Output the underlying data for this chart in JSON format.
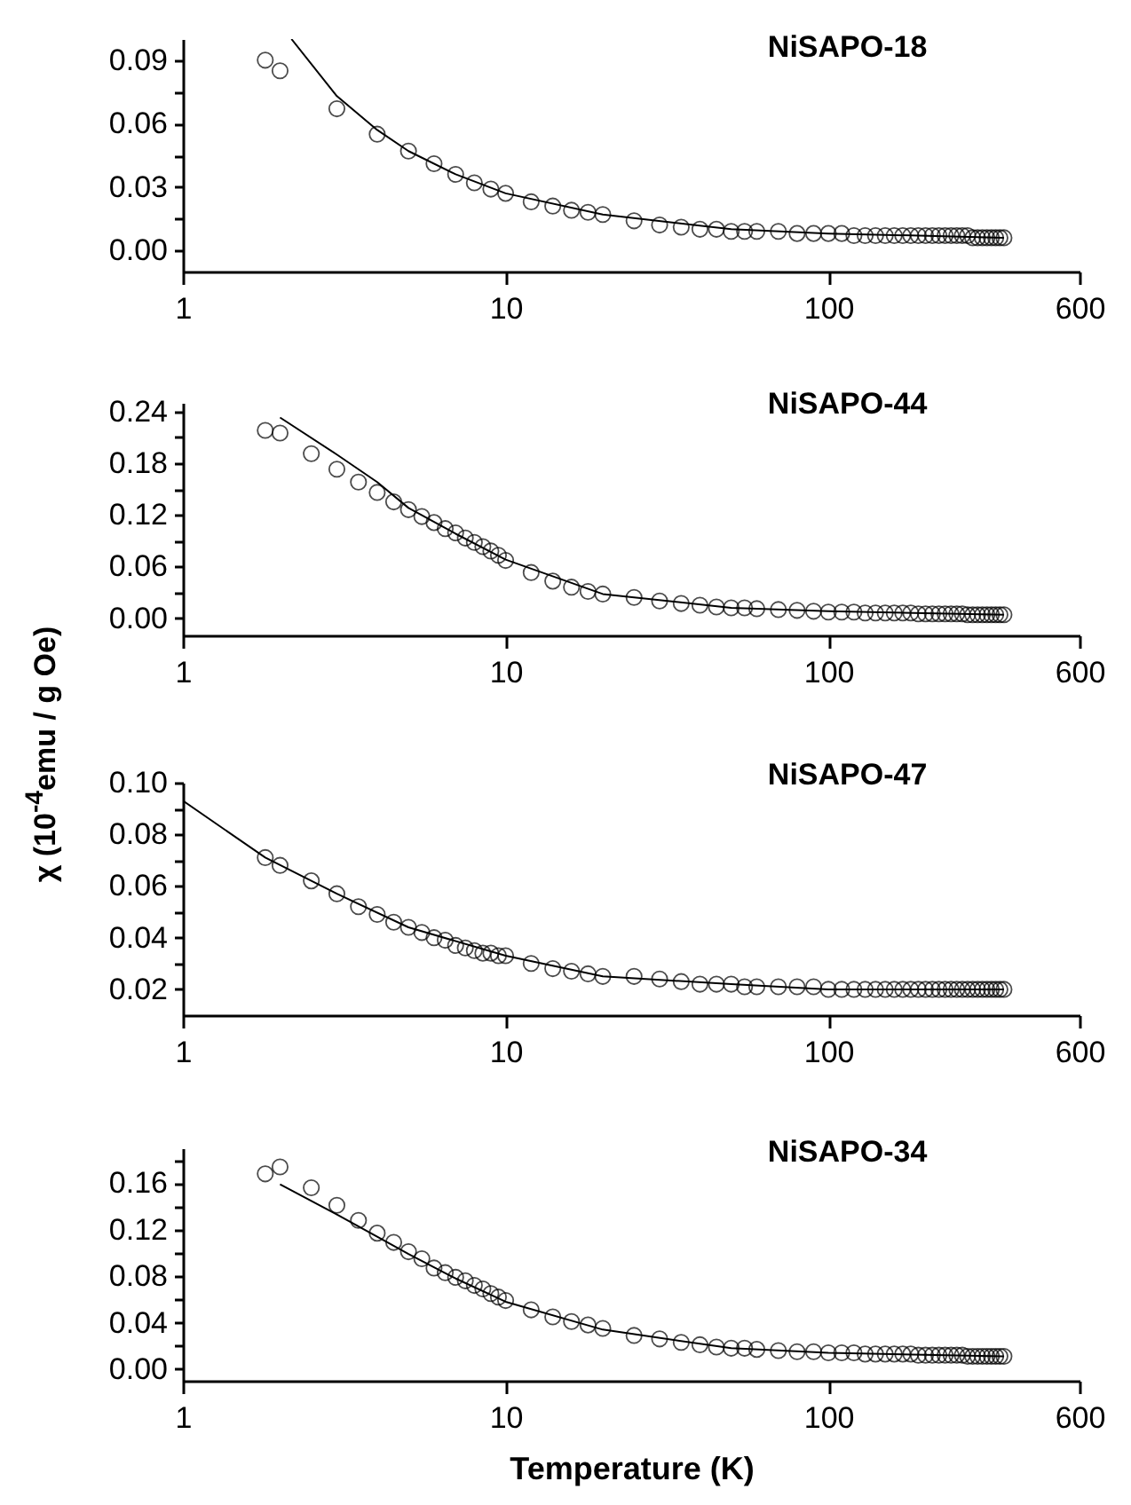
{
  "chart_data": [
    {
      "type": "scatter",
      "title": "NiSAPO-18",
      "log": "x",
      "grid": false,
      "xlim": [
        1,
        600
      ],
      "xticks": [
        1,
        10,
        100,
        600
      ],
      "ylim": [
        -0.01,
        0.1
      ],
      "yticks": [
        {
          "value": 0,
          "label": "0.00"
        },
        {
          "value": 0.015,
          "label": null
        },
        0.03,
        {
          "value": 0.045,
          "label": null
        },
        0.06,
        {
          "value": 0.075,
          "label": null
        },
        0.09
      ],
      "x": [
        1.8,
        2,
        3,
        4,
        5,
        6,
        7,
        8,
        9,
        10,
        12,
        14,
        16,
        18,
        20,
        25,
        30,
        35,
        40,
        45,
        50,
        55,
        60,
        70,
        80,
        90,
        100,
        110,
        120,
        130,
        140,
        150,
        160,
        170,
        180,
        190,
        200,
        210,
        220,
        230,
        240,
        250,
        260,
        270,
        280,
        290,
        300,
        310,
        320,
        330,
        340,
        350
      ],
      "series": [
        {
          "marker": "circle",
          "color": "#000000",
          "values": [
            0.09,
            0.085,
            0.067,
            0.055,
            0.047,
            0.041,
            0.036,
            0.032,
            0.029,
            0.027,
            0.023,
            0.021,
            0.019,
            0.018,
            0.017,
            0.014,
            0.012,
            0.011,
            0.01,
            0.01,
            0.009,
            0.009,
            0.009,
            0.009,
            0.008,
            0.008,
            0.008,
            0.008,
            0.007,
            0.007,
            0.007,
            0.007,
            0.007,
            0.007,
            0.007,
            0.007,
            0.007,
            0.007,
            0.007,
            0.007,
            0.007,
            0.007,
            0.007,
            0.007,
            0.006,
            0.006,
            0.006,
            0.006,
            0.006,
            0.006,
            0.006,
            0.006
          ]
        },
        {
          "type": "line",
          "marker": "none",
          "color": "#000000",
          "x": [
            2.17,
            3,
            4,
            5,
            7,
            10,
            20,
            50,
            100,
            350
          ],
          "values": [
            0.1,
            0.073,
            0.057,
            0.047,
            0.036,
            0.027,
            0.017,
            0.01,
            0.008,
            0.006
          ]
        }
      ]
    },
    {
      "type": "scatter",
      "title": "NiSAPO-44",
      "ylabel": "χ (10$^{-4}$emu / g Oe)",
      "log": "x",
      "grid": false,
      "xlim": [
        1,
        600
      ],
      "xticks": [
        1,
        10,
        100,
        600
      ],
      "ylim": [
        -0.02,
        0.25
      ],
      "yticks": [
        {
          "value": 0,
          "label": "0.00"
        },
        {
          "value": 0.03,
          "label": null
        },
        0.06,
        {
          "value": 0.09,
          "label": null
        },
        0.12,
        {
          "value": 0.15,
          "label": null
        },
        0.18,
        {
          "value": 0.21,
          "label": null
        },
        0.24
      ],
      "x": [
        1.8,
        2,
        2.5,
        3,
        3.5,
        4,
        4.5,
        5,
        5.5,
        6,
        6.5,
        7,
        7.5,
        8,
        8.5,
        9,
        9.5,
        10,
        12,
        14,
        16,
        18,
        20,
        25,
        30,
        35,
        40,
        45,
        50,
        55,
        60,
        70,
        80,
        90,
        100,
        110,
        120,
        130,
        140,
        150,
        160,
        170,
        180,
        190,
        200,
        210,
        220,
        230,
        240,
        250,
        260,
        270,
        280,
        290,
        300,
        310,
        320,
        330,
        340,
        350
      ],
      "series": [
        {
          "marker": "circle",
          "color": "#000000",
          "values": [
            0.218,
            0.215,
            0.191,
            0.173,
            0.158,
            0.146,
            0.135,
            0.126,
            0.118,
            0.111,
            0.104,
            0.099,
            0.093,
            0.088,
            0.083,
            0.078,
            0.073,
            0.067,
            0.053,
            0.043,
            0.036,
            0.031,
            0.028,
            0.024,
            0.02,
            0.017,
            0.015,
            0.013,
            0.012,
            0.012,
            0.011,
            0.01,
            0.009,
            0.008,
            0.007,
            0.007,
            0.007,
            0.006,
            0.006,
            0.006,
            0.006,
            0.006,
            0.006,
            0.005,
            0.005,
            0.005,
            0.005,
            0.005,
            0.005,
            0.005,
            0.005,
            0.004,
            0.004,
            0.004,
            0.004,
            0.004,
            0.004,
            0.004,
            0.004,
            0.004
          ]
        },
        {
          "type": "line",
          "marker": "none",
          "color": "#000000",
          "x": [
            2,
            3,
            4,
            5,
            7,
            10,
            20,
            50,
            100,
            350
          ],
          "values": [
            0.233,
            0.19,
            0.158,
            0.128,
            0.098,
            0.068,
            0.028,
            0.012,
            0.008,
            0.004
          ]
        }
      ]
    },
    {
      "type": "scatter",
      "title": "NiSAPO-47",
      "log": "x",
      "grid": false,
      "xlim": [
        1,
        600
      ],
      "xticks": [
        1,
        10,
        100,
        600
      ],
      "ylim": [
        0.01,
        0.1
      ],
      "yticks": [
        0.02,
        {
          "value": 0.03,
          "label": null
        },
        0.04,
        {
          "value": 0.05,
          "label": null
        },
        0.06,
        {
          "value": 0.07,
          "label": null
        },
        0.08,
        {
          "value": 0.09,
          "label": null
        },
        {
          "value": 0.1,
          "label": "0.10"
        }
      ],
      "x": [
        1.8,
        2,
        2.5,
        3,
        3.5,
        4,
        4.5,
        5,
        5.5,
        6,
        6.5,
        7,
        7.5,
        8,
        8.5,
        9,
        9.5,
        10,
        12,
        14,
        16,
        18,
        20,
        25,
        30,
        35,
        40,
        45,
        50,
        55,
        60,
        70,
        80,
        90,
        100,
        110,
        120,
        130,
        140,
        150,
        160,
        170,
        180,
        190,
        200,
        210,
        220,
        230,
        240,
        250,
        260,
        270,
        280,
        290,
        300,
        310,
        320,
        330,
        340,
        350
      ],
      "series": [
        {
          "marker": "circle",
          "color": "#000000",
          "values": [
            0.071,
            0.068,
            0.062,
            0.057,
            0.052,
            0.049,
            0.046,
            0.044,
            0.042,
            0.04,
            0.039,
            0.037,
            0.036,
            0.035,
            0.034,
            0.034,
            0.033,
            0.033,
            0.03,
            0.028,
            0.027,
            0.026,
            0.025,
            0.025,
            0.024,
            0.023,
            0.022,
            0.022,
            0.022,
            0.021,
            0.021,
            0.021,
            0.021,
            0.021,
            0.02,
            0.02,
            0.02,
            0.02,
            0.02,
            0.02,
            0.02,
            0.02,
            0.02,
            0.02,
            0.02,
            0.02,
            0.02,
            0.02,
            0.02,
            0.02,
            0.02,
            0.02,
            0.02,
            0.02,
            0.02,
            0.02,
            0.02,
            0.02,
            0.02,
            0.02
          ]
        },
        {
          "type": "line",
          "marker": "none",
          "color": "#000000",
          "x": [
            1,
            1.8,
            3,
            5,
            10,
            20,
            50,
            100,
            350
          ],
          "values": [
            0.093,
            0.071,
            0.057,
            0.044,
            0.033,
            0.025,
            0.022,
            0.02,
            0.02
          ]
        }
      ]
    },
    {
      "type": "scatter",
      "title": "NiSAPO-34",
      "xlabel": "Temperature (K)",
      "log": "x",
      "grid": false,
      "xlim": [
        1,
        600
      ],
      "xticks": [
        1,
        10,
        100,
        600
      ],
      "ylim": [
        -0.01,
        0.19
      ],
      "yticks": [
        {
          "value": 0,
          "label": "0.00"
        },
        {
          "value": 0.02,
          "label": null
        },
        0.04,
        {
          "value": 0.06,
          "label": null
        },
        0.08,
        {
          "value": 0.1,
          "label": null
        },
        0.12,
        {
          "value": 0.14,
          "label": null
        },
        0.16,
        {
          "value": 0.18,
          "label": null
        }
      ],
      "x": [
        1.8,
        2,
        2.5,
        3,
        3.5,
        4,
        4.5,
        5,
        5.5,
        6,
        6.5,
        7,
        7.5,
        8,
        8.5,
        9,
        9.5,
        10,
        12,
        14,
        16,
        18,
        20,
        25,
        30,
        35,
        40,
        45,
        50,
        55,
        60,
        70,
        80,
        90,
        100,
        110,
        120,
        130,
        140,
        150,
        160,
        170,
        180,
        190,
        200,
        210,
        220,
        230,
        240,
        250,
        260,
        270,
        280,
        290,
        300,
        310,
        320,
        330,
        340,
        350
      ],
      "series": [
        {
          "marker": "circle",
          "color": "#000000",
          "values": [
            0.168,
            0.174,
            0.156,
            0.141,
            0.128,
            0.117,
            0.109,
            0.101,
            0.095,
            0.087,
            0.083,
            0.079,
            0.076,
            0.072,
            0.069,
            0.065,
            0.062,
            0.059,
            0.051,
            0.045,
            0.041,
            0.038,
            0.035,
            0.029,
            0.026,
            0.023,
            0.021,
            0.019,
            0.018,
            0.018,
            0.017,
            0.016,
            0.015,
            0.015,
            0.014,
            0.014,
            0.014,
            0.013,
            0.013,
            0.013,
            0.013,
            0.013,
            0.013,
            0.012,
            0.012,
            0.012,
            0.012,
            0.012,
            0.012,
            0.012,
            0.012,
            0.011,
            0.011,
            0.011,
            0.011,
            0.011,
            0.011,
            0.011,
            0.011,
            0.011
          ]
        },
        {
          "type": "line",
          "marker": "none",
          "color": "#000000",
          "x": [
            2,
            3,
            4,
            5,
            7,
            10,
            20,
            50,
            100,
            350
          ],
          "values": [
            0.159,
            0.133,
            0.114,
            0.099,
            0.078,
            0.058,
            0.034,
            0.018,
            0.014,
            0.011
          ]
        }
      ]
    }
  ]
}
